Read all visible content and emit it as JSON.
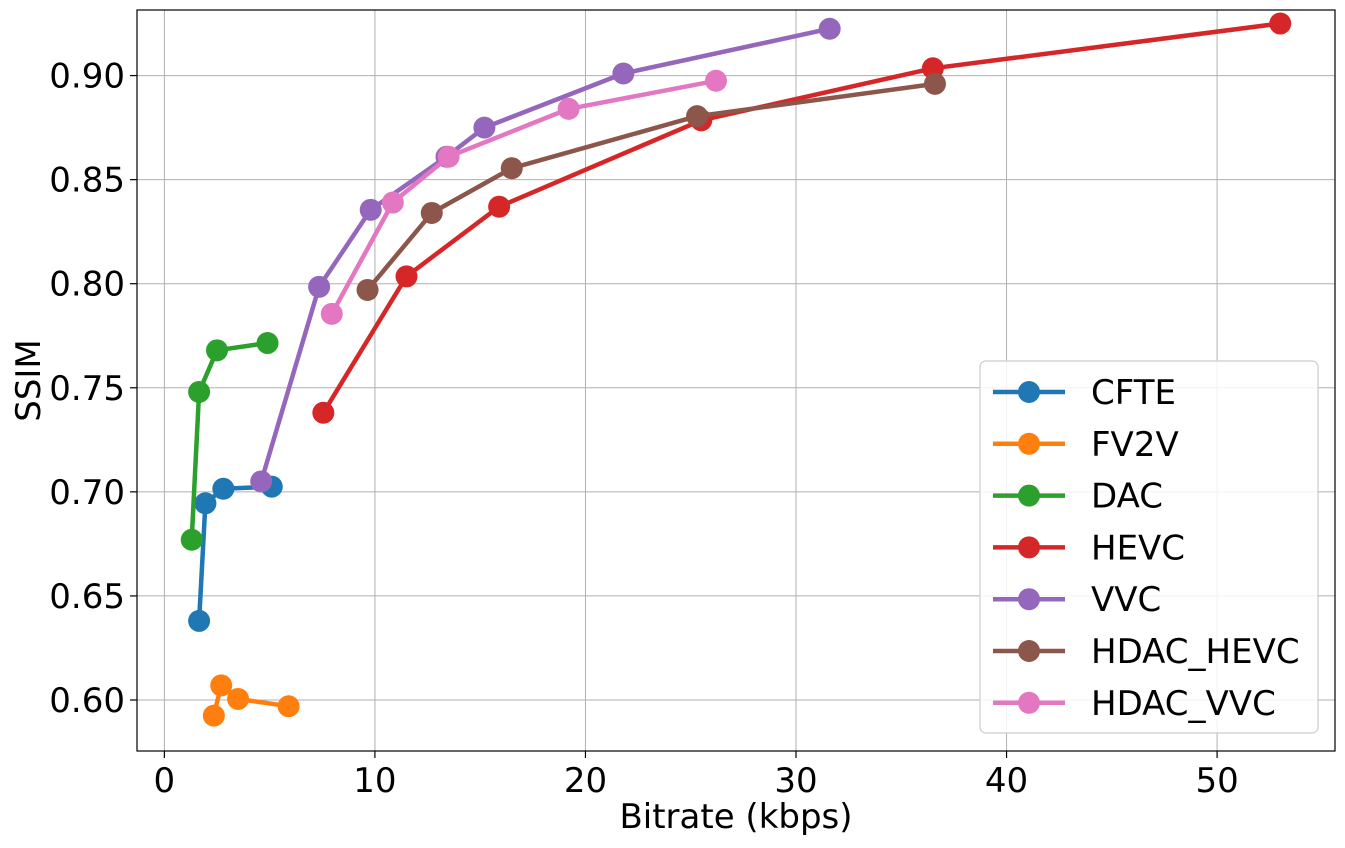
{
  "chart_data": {
    "type": "line",
    "title": "",
    "xlabel": "Bitrate (kbps)",
    "ylabel": "SSIM",
    "xlim": [
      -1.3,
      55.6
    ],
    "ylim": [
      0.5755,
      0.9315
    ],
    "xticks": [
      0,
      10,
      20,
      30,
      40,
      50
    ],
    "xtick_labels": [
      "0",
      "10",
      "20",
      "30",
      "40",
      "50"
    ],
    "yticks": [
      0.6,
      0.65,
      0.7,
      0.75,
      0.8,
      0.85,
      0.9
    ],
    "ytick_labels": [
      "0.60",
      "0.65",
      "0.70",
      "0.75",
      "0.80",
      "0.85",
      "0.90"
    ],
    "grid": true,
    "legend_position": "lower-right",
    "series": [
      {
        "name": "CFTE",
        "color": "#1f77b4",
        "points": [
          [
            1.65,
            0.638
          ],
          [
            1.95,
            0.6945
          ],
          [
            2.8,
            0.7015
          ],
          [
            5.1,
            0.7025
          ]
        ]
      },
      {
        "name": "FV2V",
        "color": "#ff7f0e",
        "points": [
          [
            2.35,
            0.5925
          ],
          [
            2.7,
            0.607
          ],
          [
            3.5,
            0.6005
          ],
          [
            5.9,
            0.597
          ]
        ]
      },
      {
        "name": "DAC",
        "color": "#2ca02c",
        "points": [
          [
            1.3,
            0.677
          ],
          [
            1.65,
            0.748
          ],
          [
            2.5,
            0.768
          ],
          [
            4.9,
            0.7715
          ]
        ]
      },
      {
        "name": "HEVC",
        "color": "#d62728",
        "points": [
          [
            7.55,
            0.738
          ],
          [
            11.5,
            0.8035
          ],
          [
            15.9,
            0.837
          ],
          [
            25.5,
            0.8785
          ],
          [
            36.5,
            0.9035
          ],
          [
            53.0,
            0.925
          ]
        ]
      },
      {
        "name": "VVC",
        "color": "#9467bd",
        "points": [
          [
            4.6,
            0.705
          ],
          [
            7.35,
            0.7985
          ],
          [
            9.8,
            0.8355
          ],
          [
            13.4,
            0.861
          ],
          [
            15.2,
            0.875
          ],
          [
            21.8,
            0.901
          ],
          [
            31.6,
            0.9225
          ]
        ]
      },
      {
        "name": "HDAC_HEVC",
        "color": "#8c564b",
        "points": [
          [
            9.65,
            0.797
          ],
          [
            12.7,
            0.834
          ],
          [
            16.5,
            0.8555
          ],
          [
            25.3,
            0.8805
          ],
          [
            36.6,
            0.896
          ]
        ]
      },
      {
        "name": "HDAC_VVC",
        "color": "#e377c2",
        "points": [
          [
            7.95,
            0.7855
          ],
          [
            10.85,
            0.839
          ],
          [
            13.5,
            0.861
          ],
          [
            19.2,
            0.884
          ],
          [
            26.2,
            0.8975
          ]
        ]
      }
    ]
  }
}
